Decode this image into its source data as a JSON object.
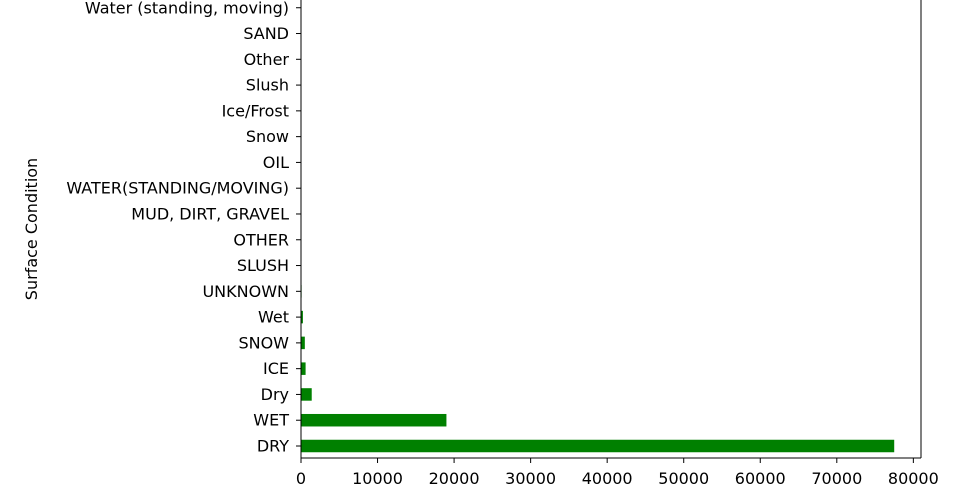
{
  "chart_data": {
    "type": "bar",
    "orientation": "horizontal",
    "categories": [
      "DRY",
      "WET",
      "Dry",
      "ICE",
      "SNOW",
      "Wet",
      "UNKNOWN",
      "SLUSH",
      "OTHER",
      "MUD, DIRT, GRAVEL",
      "WATER(STANDING/MOVING)",
      "OIL",
      "Snow",
      "Ice/Frost",
      "Slush",
      "Other",
      "SAND",
      "Water (standing, moving)"
    ],
    "values": [
      77500,
      19000,
      1400,
      600,
      500,
      250,
      80,
      40,
      30,
      20,
      15,
      10,
      8,
      5,
      4,
      3,
      2,
      1
    ],
    "bar_color": "#008000",
    "ylabel": "Surface Condition",
    "xlabel": "",
    "xlim": [
      0,
      81000
    ],
    "xticks": [
      0,
      10000,
      20000,
      30000,
      40000,
      50000,
      60000,
      70000,
      80000
    ],
    "xtick_labels": [
      "0",
      "10000",
      "20000",
      "30000",
      "40000",
      "50000",
      "60000",
      "70000",
      "80000"
    ],
    "grid": false,
    "legend": "none"
  }
}
